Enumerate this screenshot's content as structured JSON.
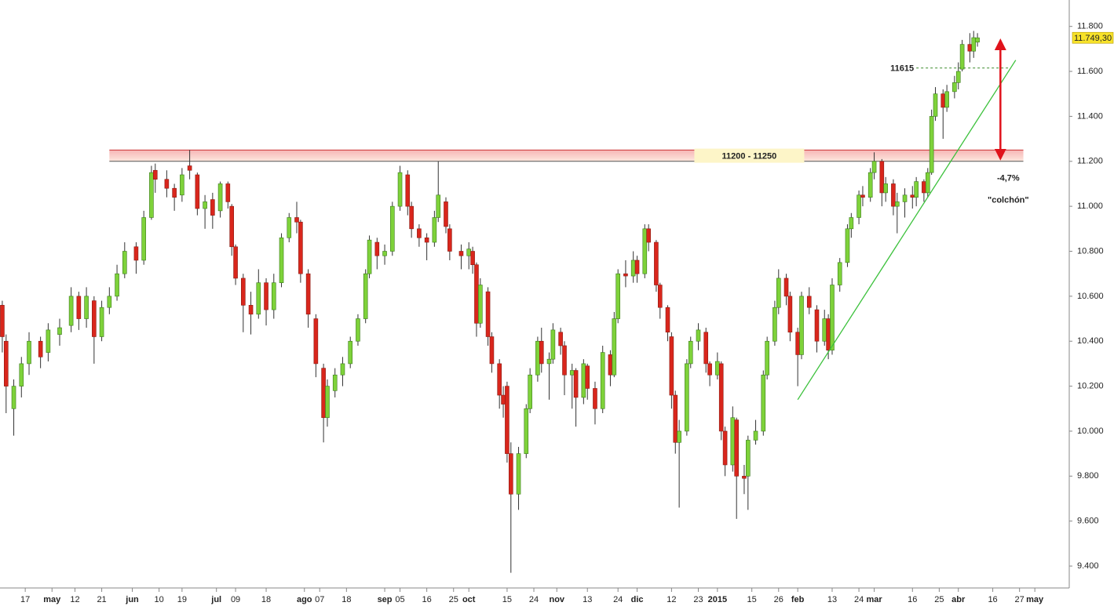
{
  "chart_data": {
    "type": "candlestick",
    "xlim": [
      -0.6,
      279
    ],
    "ylim": [
      9320,
      11900
    ],
    "yticks": [
      {
        "value": 9400,
        "label": "9.400"
      },
      {
        "value": 9600,
        "label": "9.600"
      },
      {
        "value": 9800,
        "label": "9.800"
      },
      {
        "value": 10000,
        "label": "10.000"
      },
      {
        "value": 10200,
        "label": "10.200"
      },
      {
        "value": 10400,
        "label": "10.400"
      },
      {
        "value": 10600,
        "label": "10.600"
      },
      {
        "value": 10800,
        "label": "10.800"
      },
      {
        "value": 11000,
        "label": "11.000"
      },
      {
        "value": 11200,
        "label": "11.200"
      },
      {
        "value": 11400,
        "label": "11.400"
      },
      {
        "value": 11600,
        "label": "11.600"
      },
      {
        "value": 11800,
        "label": "11.800"
      }
    ],
    "xticks": [
      {
        "value": 6,
        "label": "17"
      },
      {
        "value": 13,
        "label": "may"
      },
      {
        "value": 19,
        "label": "12"
      },
      {
        "value": 26,
        "label": "21"
      },
      {
        "value": 34,
        "label": "jun"
      },
      {
        "value": 41,
        "label": "10"
      },
      {
        "value": 47,
        "label": "19"
      },
      {
        "value": 56,
        "label": "jul"
      },
      {
        "value": 61,
        "label": "09"
      },
      {
        "value": 69,
        "label": "18"
      },
      {
        "value": 79,
        "label": "ago"
      },
      {
        "value": 83,
        "label": "07"
      },
      {
        "value": 90,
        "label": "18"
      },
      {
        "value": 100,
        "label": "sep"
      },
      {
        "value": 104,
        "label": "05"
      },
      {
        "value": 111,
        "label": "16"
      },
      {
        "value": 118,
        "label": "25"
      },
      {
        "value": 122,
        "label": "oct"
      },
      {
        "value": 132,
        "label": "15"
      },
      {
        "value": 139,
        "label": "24"
      },
      {
        "value": 145,
        "label": "nov"
      },
      {
        "value": 153,
        "label": "13"
      },
      {
        "value": 161,
        "label": "24"
      },
      {
        "value": 166,
        "label": "dic"
      },
      {
        "value": 175,
        "label": "12"
      },
      {
        "value": 182,
        "label": "23"
      },
      {
        "value": 187,
        "label": "2015"
      },
      {
        "value": 196,
        "label": "15"
      },
      {
        "value": 203,
        "label": "26"
      },
      {
        "value": 208,
        "label": "feb"
      },
      {
        "value": 217,
        "label": "13"
      },
      {
        "value": 224,
        "label": "24"
      },
      {
        "value": 228,
        "label": "mar"
      },
      {
        "value": 238,
        "label": "16"
      },
      {
        "value": 245,
        "label": "25"
      },
      {
        "value": 250,
        "label": "abr"
      },
      {
        "value": 259,
        "label": "16"
      },
      {
        "value": 266,
        "label": "27"
      },
      {
        "value": 270,
        "label": "may"
      }
    ],
    "up_color": "#7ed23a",
    "down_color": "#d9261c",
    "x": [
      0,
      1,
      3,
      5,
      7,
      10,
      12,
      15,
      18,
      20,
      22,
      24,
      26,
      28,
      30,
      32,
      35,
      37,
      39,
      40,
      43,
      45,
      47,
      49,
      51,
      53,
      55,
      57,
      59,
      60,
      61,
      63,
      65,
      67,
      69,
      71,
      73,
      75,
      77,
      78,
      80,
      82,
      84,
      85,
      87,
      89,
      91,
      93,
      95,
      96,
      98,
      100,
      102,
      104,
      106,
      107,
      109,
      111,
      113,
      114,
      116,
      117,
      120,
      122,
      123,
      124,
      125,
      127,
      128,
      130,
      131,
      132,
      133,
      135,
      137,
      138,
      140,
      141,
      143,
      144,
      146,
      147,
      149,
      150,
      152,
      153,
      155,
      157,
      159,
      160,
      161,
      163,
      165,
      166,
      168,
      169,
      171,
      172,
      174,
      175,
      176,
      177,
      179,
      180,
      182,
      184,
      185,
      187,
      188,
      189,
      191,
      192,
      194,
      195,
      197,
      199,
      200,
      202,
      203,
      205,
      206,
      208,
      209,
      211,
      213,
      215,
      216,
      217,
      219,
      221,
      222,
      224,
      225,
      227,
      228,
      230,
      231,
      233,
      234,
      236,
      238,
      239,
      241,
      242,
      243,
      244,
      246,
      247,
      249,
      250,
      251,
      253,
      254,
      255
    ],
    "ohlc": [
      [
        10560,
        10580,
        10350,
        10420
      ],
      [
        10400,
        10430,
        10080,
        10200
      ],
      [
        10100,
        10230,
        9980,
        10200
      ],
      [
        10200,
        10330,
        10150,
        10300
      ],
      [
        10300,
        10440,
        10250,
        10400
      ],
      [
        10400,
        10420,
        10280,
        10330
      ],
      [
        10350,
        10480,
        10310,
        10450
      ],
      [
        10430,
        10500,
        10380,
        10460
      ],
      [
        10470,
        10640,
        10440,
        10600
      ],
      [
        10600,
        10620,
        10450,
        10500
      ],
      [
        10500,
        10640,
        10460,
        10600
      ],
      [
        10580,
        10600,
        10300,
        10420
      ],
      [
        10420,
        10580,
        10400,
        10550
      ],
      [
        10550,
        10640,
        10520,
        10600
      ],
      [
        10600,
        10740,
        10580,
        10700
      ],
      [
        10700,
        10840,
        10680,
        10800
      ],
      [
        10820,
        10840,
        10700,
        10760
      ],
      [
        10760,
        10980,
        10740,
        10950
      ],
      [
        10950,
        11180,
        10940,
        11150
      ],
      [
        11160,
        11190,
        11060,
        11120
      ],
      [
        11120,
        11160,
        11040,
        11080
      ],
      [
        11080,
        11100,
        10980,
        11040
      ],
      [
        11050,
        11170,
        11020,
        11140
      ],
      [
        11180,
        11250,
        11120,
        11160
      ],
      [
        11140,
        11150,
        10960,
        10990
      ],
      [
        10990,
        11050,
        10900,
        11020
      ],
      [
        11030,
        11060,
        10900,
        10960
      ],
      [
        10980,
        11110,
        10950,
        11100
      ],
      [
        11100,
        11110,
        10990,
        11020
      ],
      [
        11000,
        11010,
        10780,
        10820
      ],
      [
        10820,
        10830,
        10650,
        10680
      ],
      [
        10680,
        10700,
        10440,
        10560
      ],
      [
        10560,
        10620,
        10430,
        10520
      ],
      [
        10520,
        10720,
        10500,
        10660
      ],
      [
        10660,
        10680,
        10470,
        10540
      ],
      [
        10540,
        10700,
        10500,
        10660
      ],
      [
        10660,
        10880,
        10640,
        10860
      ],
      [
        10860,
        10970,
        10840,
        10950
      ],
      [
        10950,
        11020,
        10880,
        10930
      ],
      [
        10930,
        10940,
        10660,
        10700
      ],
      [
        10700,
        10720,
        10460,
        10520
      ],
      [
        10500,
        10520,
        10240,
        10300
      ],
      [
        10280,
        10300,
        9950,
        10060
      ],
      [
        10060,
        10230,
        10020,
        10200
      ],
      [
        10180,
        10280,
        10150,
        10250
      ],
      [
        10250,
        10330,
        10200,
        10300
      ],
      [
        10300,
        10420,
        10280,
        10400
      ],
      [
        10400,
        10520,
        10380,
        10500
      ],
      [
        10500,
        10720,
        10480,
        10700
      ],
      [
        10700,
        10870,
        10680,
        10850
      ],
      [
        10840,
        10860,
        10720,
        10780
      ],
      [
        10780,
        10830,
        10740,
        10800
      ],
      [
        10800,
        11020,
        10780,
        11000
      ],
      [
        11000,
        11180,
        10980,
        11150
      ],
      [
        11140,
        11160,
        10960,
        11000
      ],
      [
        11000,
        11020,
        10860,
        10900
      ],
      [
        10900,
        10920,
        10820,
        10860
      ],
      [
        10860,
        10880,
        10760,
        10840
      ],
      [
        10840,
        10980,
        10820,
        10950
      ],
      [
        10950,
        11200,
        10930,
        11050
      ],
      [
        11020,
        11040,
        10880,
        10910
      ],
      [
        10900,
        10920,
        10760,
        10800
      ],
      [
        10800,
        10830,
        10720,
        10780
      ],
      [
        10780,
        10840,
        10720,
        10810
      ],
      [
        10800,
        10820,
        10700,
        10740
      ],
      [
        10740,
        10750,
        10420,
        10480
      ],
      [
        10480,
        10680,
        10460,
        10650
      ],
      [
        10620,
        10640,
        10380,
        10420
      ],
      [
        10420,
        10440,
        10260,
        10300
      ],
      [
        10300,
        10320,
        10100,
        10160
      ],
      [
        10160,
        10200,
        10060,
        10120
      ],
      [
        10200,
        10220,
        9860,
        9900
      ],
      [
        9900,
        9950,
        9370,
        9720
      ],
      [
        9720,
        9930,
        9650,
        9900
      ],
      [
        9900,
        10120,
        9880,
        10100
      ],
      [
        10100,
        10280,
        10080,
        10250
      ],
      [
        10250,
        10420,
        10220,
        10400
      ],
      [
        10400,
        10460,
        10260,
        10300
      ],
      [
        10300,
        10350,
        10140,
        10320
      ],
      [
        10320,
        10480,
        10300,
        10450
      ],
      [
        10440,
        10460,
        10340,
        10380
      ],
      [
        10380,
        10400,
        10160,
        10250
      ],
      [
        10250,
        10300,
        10100,
        10270
      ],
      [
        10270,
        10280,
        10020,
        10150
      ],
      [
        10150,
        10320,
        10120,
        10300
      ],
      [
        10290,
        10300,
        10140,
        10190
      ],
      [
        10190,
        10220,
        10030,
        10100
      ],
      [
        10100,
        10380,
        10080,
        10350
      ],
      [
        10340,
        10360,
        10200,
        10250
      ],
      [
        10250,
        10530,
        10240,
        10500
      ],
      [
        10500,
        10720,
        10480,
        10700
      ],
      [
        10700,
        10760,
        10640,
        10690
      ],
      [
        10690,
        10800,
        10660,
        10760
      ],
      [
        10760,
        10780,
        10660,
        10700
      ],
      [
        10700,
        10920,
        10680,
        10900
      ],
      [
        10900,
        10920,
        10800,
        10840
      ],
      [
        10840,
        10850,
        10620,
        10650
      ],
      [
        10650,
        10660,
        10500,
        10550
      ],
      [
        10550,
        10560,
        10400,
        10440
      ],
      [
        10420,
        10440,
        10100,
        10160
      ],
      [
        10160,
        10180,
        9900,
        9950
      ],
      [
        9950,
        10050,
        9660,
        10000
      ],
      [
        10000,
        10320,
        9980,
        10300
      ],
      [
        10300,
        10420,
        10280,
        10400
      ],
      [
        10400,
        10480,
        10360,
        10450
      ],
      [
        10440,
        10460,
        10260,
        10300
      ],
      [
        10300,
        10310,
        10200,
        10250
      ],
      [
        10250,
        10350,
        10230,
        10310
      ],
      [
        10300,
        10310,
        9960,
        10000
      ],
      [
        10000,
        10020,
        9800,
        9850
      ],
      [
        9850,
        10110,
        9820,
        10060
      ],
      [
        10050,
        10060,
        9610,
        9800
      ],
      [
        9800,
        9850,
        9720,
        9790
      ],
      [
        9800,
        9980,
        9650,
        9960
      ],
      [
        9960,
        10050,
        9940,
        10000
      ],
      [
        10000,
        10270,
        9980,
        10250
      ],
      [
        10250,
        10420,
        10230,
        10400
      ],
      [
        10400,
        10580,
        10380,
        10550
      ],
      [
        10550,
        10720,
        10520,
        10680
      ],
      [
        10680,
        10700,
        10560,
        10600
      ],
      [
        10600,
        10620,
        10400,
        10440
      ],
      [
        10440,
        10460,
        10200,
        10340
      ],
      [
        10340,
        10620,
        10320,
        10600
      ],
      [
        10600,
        10640,
        10520,
        10550
      ],
      [
        10540,
        10560,
        10350,
        10400
      ],
      [
        10400,
        10540,
        10380,
        10500
      ],
      [
        10500,
        10520,
        10320,
        10360
      ],
      [
        10360,
        10680,
        10340,
        10650
      ],
      [
        10650,
        10770,
        10620,
        10750
      ],
      [
        10750,
        10920,
        10730,
        10900
      ],
      [
        10900,
        10970,
        10860,
        10950
      ],
      [
        10950,
        11070,
        10920,
        11050
      ],
      [
        11050,
        11090,
        11000,
        11040
      ],
      [
        11040,
        11170,
        11020,
        11150
      ],
      [
        11150,
        11240,
        11120,
        11200
      ],
      [
        11200,
        11210,
        11000,
        11060
      ],
      [
        11060,
        11130,
        11020,
        11100
      ],
      [
        11100,
        11120,
        10960,
        11000
      ],
      [
        11000,
        11060,
        10880,
        11020
      ],
      [
        11020,
        11080,
        10950,
        11050
      ],
      [
        11050,
        11090,
        10990,
        11040
      ],
      [
        11040,
        11130,
        11000,
        11110
      ],
      [
        11110,
        11120,
        11020,
        11060
      ],
      [
        11060,
        11170,
        11040,
        11150
      ],
      [
        11150,
        11430,
        11140,
        11400
      ],
      [
        11400,
        11530,
        11380,
        11500
      ],
      [
        11500,
        11520,
        11300,
        11440
      ],
      [
        11440,
        11540,
        11420,
        11510
      ],
      [
        11510,
        11580,
        11480,
        11550
      ],
      [
        11550,
        11640,
        11520,
        11600
      ],
      [
        11610,
        11740,
        11600,
        11720
      ],
      [
        11720,
        11770,
        11640,
        11690
      ],
      [
        11690,
        11780,
        11660,
        11750
      ],
      [
        11730,
        11770,
        11710,
        11749.3
      ]
    ],
    "band": {
      "from": 11200,
      "to": 11250,
      "x": [
        28,
        267
      ],
      "label": "11200 - 11250"
    },
    "support": {
      "value": 11615,
      "x": [
        239,
        263
      ]
    },
    "trendline": {
      "x": [
        208,
        265
      ],
      "y": [
        10140,
        11650
      ]
    },
    "arrow": {
      "x": 261,
      "from": 11750,
      "to": 11200,
      "label": "-4,7%",
      "sublabel": "\"colchón\""
    },
    "last_price": {
      "value": 11749.3,
      "label": "11.749,30"
    }
  }
}
